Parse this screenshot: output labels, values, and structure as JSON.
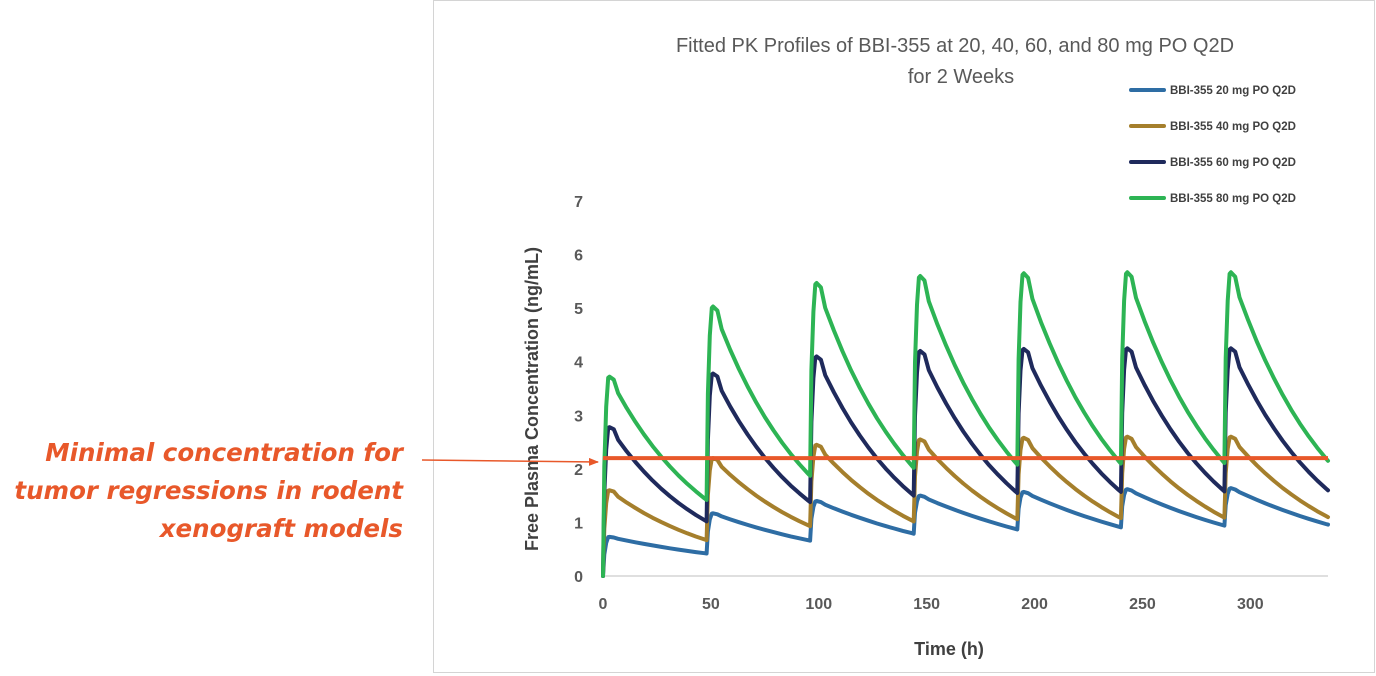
{
  "annotation": {
    "lines": [
      "Minimal concentration for",
      "tumor regressions in rodent",
      "xenograft models"
    ],
    "color": "#E8582A"
  },
  "chart_data": {
    "type": "line",
    "title_lines": [
      "Fitted PK Profiles of BBI-355 at 20, 40, 60, and 80 mg PO Q2D",
      "for 2 Weeks"
    ],
    "xlabel": "Time (h)",
    "ylabel": "Free Plasma Concentration (ng/mL)",
    "xlim": [
      0,
      336
    ],
    "ylim": [
      0,
      7
    ],
    "xticks": [
      0,
      50,
      100,
      150,
      200,
      250,
      300
    ],
    "yticks": [
      0,
      1,
      2,
      3,
      4,
      5,
      6,
      7
    ],
    "dose_interval_h": 48,
    "legend_position": "top-right",
    "series": [
      {
        "name": "BBI-355 20 mg PO Q2D",
        "color": "#2E6DA4",
        "peaks": [
          0.73,
          1.17,
          1.4,
          1.5,
          1.57,
          1.62,
          1.64
        ],
        "troughs": [
          0.42,
          0.66,
          0.79,
          0.87,
          0.91,
          0.94,
          0.96
        ]
      },
      {
        "name": "BBI-355 40 mg PO Q2D",
        "color": "#A57F2C",
        "peaks": [
          1.6,
          2.2,
          2.45,
          2.55,
          2.58,
          2.6,
          2.6
        ],
        "troughs": [
          0.67,
          0.93,
          1.02,
          1.06,
          1.08,
          1.09,
          1.1
        ]
      },
      {
        "name": "BBI-355 60 mg PO Q2D",
        "color": "#1F2A5C",
        "peaks": [
          2.78,
          3.78,
          4.1,
          4.2,
          4.24,
          4.25,
          4.25
        ],
        "troughs": [
          1.02,
          1.38,
          1.5,
          1.55,
          1.57,
          1.58,
          1.6
        ]
      },
      {
        "name": "BBI-355 80 mg PO Q2D",
        "color": "#2DB454",
        "peaks": [
          3.72,
          5.03,
          5.47,
          5.6,
          5.65,
          5.67,
          5.67
        ],
        "troughs": [
          1.42,
          1.87,
          2.02,
          2.08,
          2.1,
          2.11,
          2.15
        ]
      }
    ],
    "threshold": {
      "value": 2.2,
      "color": "#E8582A"
    }
  }
}
